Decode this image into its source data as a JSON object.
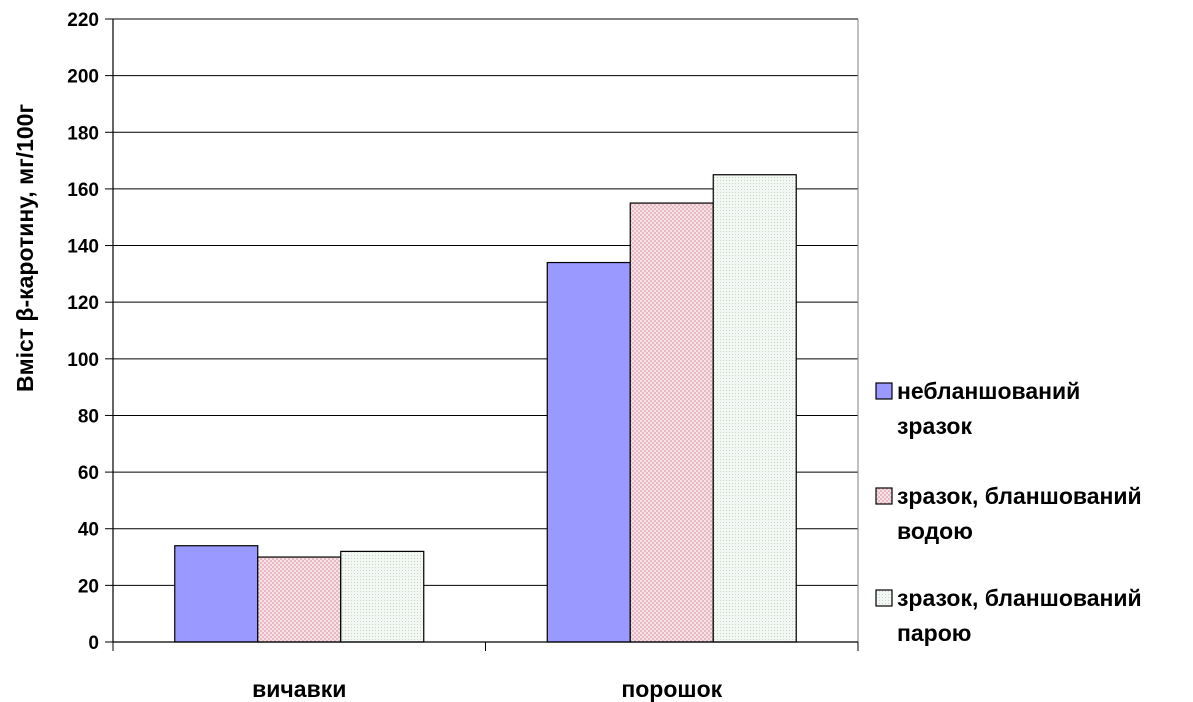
{
  "chart_data": {
    "type": "bar",
    "title": "",
    "xlabel": "",
    "ylabel": "Вміст β-каротину, мг/100г",
    "ylim": [
      0,
      220
    ],
    "yticks": [
      0,
      20,
      40,
      60,
      80,
      100,
      120,
      140,
      160,
      180,
      200,
      220
    ],
    "grid": true,
    "legend_position": "right",
    "categories": [
      "вичавки",
      "порошок"
    ],
    "series": [
      {
        "name": "небланшований зразок",
        "legend_lines": [
          "небланшований",
          "зразок"
        ],
        "color": "#9999ff",
        "pattern": "solid",
        "values": [
          34,
          134
        ]
      },
      {
        "name": "зразок, бланшований водою",
        "legend_lines": [
          "зразок, бланшований",
          "водою"
        ],
        "color": "#e8c4cc",
        "pattern": "checker",
        "values": [
          30,
          155
        ]
      },
      {
        "name": "зразок, бланшований парою",
        "legend_lines": [
          "зразок, бланшований",
          "парою"
        ],
        "color": "#eef3ee",
        "pattern": "dots",
        "values": [
          32,
          165
        ]
      }
    ]
  }
}
